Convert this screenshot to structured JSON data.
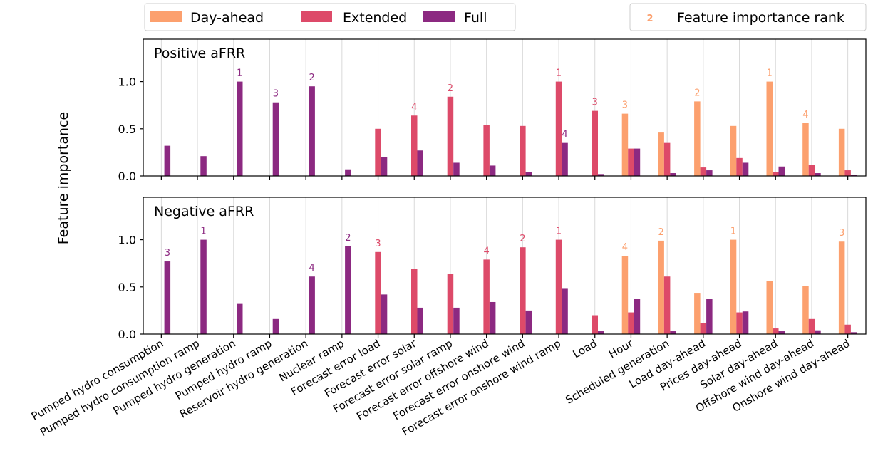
{
  "colors": {
    "day_ahead": "#fca06e",
    "extended": "#dd4a69",
    "full": "#8c2981",
    "grid": "#d9d9d9",
    "axis": "#000000"
  },
  "legend": {
    "series": [
      "Day-ahead",
      "Extended",
      "Full"
    ],
    "rank_symbol": "2",
    "rank_label": "Feature importance rank"
  },
  "chart_data": {
    "type": "bar",
    "ylabel": "Feature importance",
    "ylim": [
      0,
      1.45
    ],
    "yticks": [
      "0.0",
      "0.5",
      "1.0"
    ],
    "grid": "vertical",
    "legend_placement": "top",
    "categories": [
      "Pumped hydro consumption",
      "Pumped hydro consumption ramp",
      "Pumped hydro generation",
      "Pumped hydro ramp",
      "Reservoir hydro generation",
      "Nuclear ramp",
      "Forecast error load",
      "Forecast error solar",
      "Forecast error solar ramp",
      "Forecast error offshore wind",
      "Forecast error onshore wind",
      "Forecast error onshore wind ramp",
      "Load",
      "Hour",
      "Scheduled generation",
      "Load day-ahead",
      "Prices day-ahead",
      "Solar day-ahead",
      "Offshore wind day-ahead",
      "Onshore wind day-ahead"
    ],
    "panels": [
      {
        "title": "Positive aFRR",
        "series": [
          {
            "name": "Day-ahead",
            "values": [
              null,
              null,
              null,
              null,
              null,
              null,
              null,
              null,
              null,
              null,
              null,
              null,
              null,
              0.66,
              0.46,
              0.79,
              0.53,
              1.0,
              0.56,
              0.5
            ]
          },
          {
            "name": "Extended",
            "values": [
              null,
              null,
              null,
              null,
              null,
              null,
              0.5,
              0.64,
              0.84,
              0.54,
              0.53,
              1.0,
              0.69,
              0.29,
              0.35,
              0.09,
              0.19,
              0.04,
              0.12,
              0.06
            ]
          },
          {
            "name": "Full",
            "values": [
              0.32,
              0.21,
              1.0,
              0.78,
              0.95,
              0.07,
              0.2,
              0.27,
              0.14,
              0.11,
              0.04,
              0.35,
              0.02,
              0.29,
              0.03,
              0.06,
              0.14,
              0.1,
              0.03,
              0.01
            ]
          }
        ],
        "ranks": [
          {
            "category": 2,
            "series": 2,
            "rank": "1"
          },
          {
            "category": 3,
            "series": 2,
            "rank": "3"
          },
          {
            "category": 4,
            "series": 2,
            "rank": "2"
          },
          {
            "category": 7,
            "series": 1,
            "rank": "4"
          },
          {
            "category": 8,
            "series": 1,
            "rank": "2"
          },
          {
            "category": 11,
            "series": 1,
            "rank": "1"
          },
          {
            "category": 11,
            "series": 2,
            "rank": "4"
          },
          {
            "category": 12,
            "series": 1,
            "rank": "3"
          },
          {
            "category": 13,
            "series": 0,
            "rank": "3"
          },
          {
            "category": 15,
            "series": 0,
            "rank": "2"
          },
          {
            "category": 17,
            "series": 0,
            "rank": "1"
          },
          {
            "category": 18,
            "series": 0,
            "rank": "4"
          }
        ]
      },
      {
        "title": "Negative aFRR",
        "series": [
          {
            "name": "Day-ahead",
            "values": [
              null,
              null,
              null,
              null,
              null,
              null,
              null,
              null,
              null,
              null,
              null,
              null,
              null,
              0.83,
              0.99,
              0.43,
              1.0,
              0.56,
              0.51,
              0.98
            ]
          },
          {
            "name": "Extended",
            "values": [
              null,
              null,
              null,
              null,
              null,
              null,
              0.87,
              0.69,
              0.64,
              0.79,
              0.92,
              1.0,
              0.2,
              0.23,
              0.61,
              0.12,
              0.23,
              0.06,
              0.16,
              0.1
            ]
          },
          {
            "name": "Full",
            "values": [
              0.77,
              1.0,
              0.32,
              0.16,
              0.61,
              0.93,
              0.42,
              0.28,
              0.28,
              0.34,
              0.25,
              0.48,
              0.03,
              0.37,
              0.03,
              0.37,
              0.24,
              0.03,
              0.04,
              0.02
            ]
          }
        ],
        "ranks": [
          {
            "category": 0,
            "series": 2,
            "rank": "3"
          },
          {
            "category": 1,
            "series": 2,
            "rank": "1"
          },
          {
            "category": 4,
            "series": 2,
            "rank": "4"
          },
          {
            "category": 5,
            "series": 2,
            "rank": "2"
          },
          {
            "category": 6,
            "series": 1,
            "rank": "3"
          },
          {
            "category": 9,
            "series": 1,
            "rank": "4"
          },
          {
            "category": 10,
            "series": 1,
            "rank": "2"
          },
          {
            "category": 11,
            "series": 1,
            "rank": "1"
          },
          {
            "category": 13,
            "series": 0,
            "rank": "4"
          },
          {
            "category": 14,
            "series": 0,
            "rank": "2"
          },
          {
            "category": 16,
            "series": 0,
            "rank": "1"
          },
          {
            "category": 19,
            "series": 0,
            "rank": "3"
          }
        ]
      }
    ]
  }
}
